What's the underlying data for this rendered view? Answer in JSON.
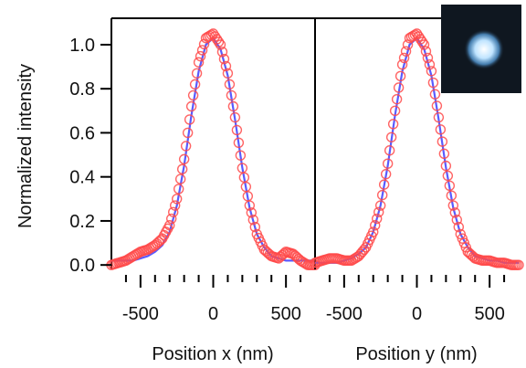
{
  "chart_data": [
    {
      "type": "scatter",
      "panel": "x",
      "xlabel": "Position x (nm)",
      "ylabel": "Normalized intensity",
      "xlim": [
        -700,
        700
      ],
      "ylim": [
        -0.02,
        1.12
      ],
      "xticks": [
        -500,
        0,
        500
      ],
      "xtick_labels": [
        "-500",
        "0",
        "500"
      ],
      "yticks": [
        0.0,
        0.2,
        0.4,
        0.6,
        0.8,
        1.0
      ],
      "ytick_labels": [
        "0.0",
        "0.2",
        "0.4",
        "0.6",
        "0.8",
        "1.0"
      ],
      "series": [
        {
          "kind": "measured (circles)",
          "color": "#ff4a4a",
          "x": [
            -700,
            -650,
            -600,
            -550,
            -500,
            -450,
            -400,
            -350,
            -300,
            -250,
            -200,
            -150,
            -100,
            -50,
            0,
            50,
            100,
            150,
            200,
            250,
            300,
            350,
            400,
            450,
            500,
            550,
            600,
            650,
            700
          ],
          "y": [
            0.0,
            0.01,
            0.02,
            0.04,
            0.06,
            0.07,
            0.09,
            0.12,
            0.18,
            0.3,
            0.48,
            0.72,
            0.92,
            1.03,
            1.05,
            1.0,
            0.87,
            0.67,
            0.44,
            0.27,
            0.14,
            0.07,
            0.04,
            0.03,
            0.06,
            0.05,
            0.02,
            0.0,
            0.0
          ]
        },
        {
          "kind": "fit (line)",
          "color": "#5a5aff",
          "x": [
            -700,
            -650,
            -600,
            -550,
            -500,
            -450,
            -400,
            -350,
            -300,
            -250,
            -200,
            -150,
            -100,
            -50,
            0,
            50,
            100,
            150,
            200,
            250,
            300,
            350,
            400,
            450,
            500,
            550,
            600,
            650,
            700
          ],
          "y": [
            0.02,
            0.02,
            0.02,
            0.02,
            0.03,
            0.04,
            0.06,
            0.09,
            0.15,
            0.27,
            0.45,
            0.68,
            0.88,
            1.0,
            1.03,
            0.98,
            0.86,
            0.66,
            0.44,
            0.26,
            0.14,
            0.08,
            0.04,
            0.03,
            0.02,
            0.02,
            0.02,
            0.02,
            0.02
          ]
        }
      ]
    },
    {
      "type": "scatter",
      "panel": "y",
      "xlabel": "Position y (nm)",
      "ylabel": "",
      "xlim": [
        -700,
        700
      ],
      "ylim": [
        -0.02,
        1.12
      ],
      "xticks": [
        -500,
        0,
        500
      ],
      "xtick_labels": [
        "-500",
        "0",
        "500"
      ],
      "series": [
        {
          "kind": "measured (circles)",
          "color": "#ff4a4a",
          "x": [
            -700,
            -650,
            -600,
            -550,
            -500,
            -450,
            -400,
            -350,
            -300,
            -250,
            -200,
            -150,
            -100,
            -50,
            0,
            50,
            100,
            150,
            200,
            250,
            300,
            350,
            400,
            450,
            500,
            550,
            600,
            650,
            700
          ],
          "y": [
            0.01,
            0.02,
            0.03,
            0.03,
            0.02,
            0.02,
            0.04,
            0.08,
            0.15,
            0.27,
            0.46,
            0.7,
            0.91,
            1.03,
            1.05,
            1.0,
            0.88,
            0.67,
            0.45,
            0.27,
            0.14,
            0.06,
            0.03,
            0.02,
            0.02,
            0.01,
            0.01,
            0.0,
            0.0
          ]
        },
        {
          "kind": "fit (line)",
          "color": "#5a5aff",
          "x": [
            -700,
            -650,
            -600,
            -550,
            -500,
            -450,
            -400,
            -350,
            -300,
            -250,
            -200,
            -150,
            -100,
            -50,
            0,
            50,
            100,
            150,
            200,
            250,
            300,
            350,
            400,
            450,
            500,
            550,
            600,
            650,
            700
          ],
          "y": [
            0.01,
            0.01,
            0.01,
            0.01,
            0.02,
            0.03,
            0.05,
            0.08,
            0.15,
            0.27,
            0.45,
            0.68,
            0.88,
            1.0,
            1.03,
            0.98,
            0.86,
            0.66,
            0.44,
            0.26,
            0.14,
            0.08,
            0.04,
            0.03,
            0.02,
            0.02,
            0.01,
            0.01,
            0.01
          ]
        }
      ]
    }
  ],
  "inset": {
    "kind": "spot image",
    "background": "#0f1720",
    "spot_color": "#dbefff"
  },
  "colors": {
    "measured": "#ff4a4a",
    "fit": "#5a5aff",
    "axis": "#000000"
  }
}
